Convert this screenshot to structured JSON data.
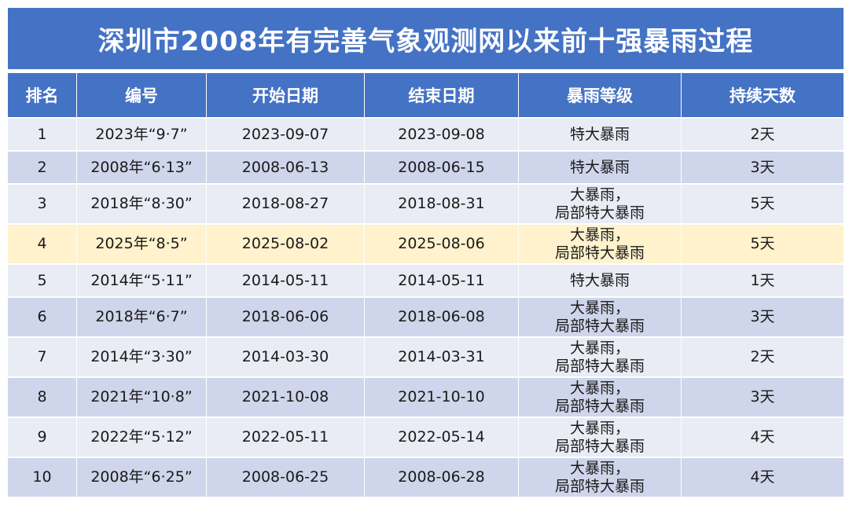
{
  "title": "深圳市2008年有完善气象观测网以来前十强暴雨过程",
  "headers": [
    "排名",
    "编号",
    "开始日期",
    "结束日期",
    "暴雨等级",
    "持续天数"
  ],
  "colors": {
    "header": "#4472c4",
    "row_light": "#e9ecf5",
    "row_dark": "#cfd5ea",
    "highlight": "#fff2cc"
  },
  "rows": [
    {
      "rank": "1",
      "code": "2023年“9·7”",
      "start": "2023-09-07",
      "end": "2023-09-08",
      "grade": [
        "特大暴雨"
      ],
      "days": "2天"
    },
    {
      "rank": "2",
      "code": "2008年“6·13”",
      "start": "2008-06-13",
      "end": "2008-06-15",
      "grade": [
        "特大暴雨"
      ],
      "days": "3天"
    },
    {
      "rank": "3",
      "code": "2018年“8·30”",
      "start": "2018-08-27",
      "end": "2018-08-31",
      "grade": [
        "大暴雨，",
        "局部特大暴雨"
      ],
      "days": "5天"
    },
    {
      "rank": "4",
      "code": "2025年“8·5”",
      "start": "2025-08-02",
      "end": "2025-08-06",
      "grade": [
        "大暴雨，",
        "局部特大暴雨"
      ],
      "days": "5天",
      "highlight": true
    },
    {
      "rank": "5",
      "code": "2014年“5·11”",
      "start": "2014-05-11",
      "end": "2014-05-11",
      "grade": [
        "特大暴雨"
      ],
      "days": "1天"
    },
    {
      "rank": "6",
      "code": "2018年“6·7”",
      "start": "2018-06-06",
      "end": "2018-06-08",
      "grade": [
        "大暴雨，",
        "局部特大暴雨"
      ],
      "days": "3天"
    },
    {
      "rank": "7",
      "code": "2014年“3·30”",
      "start": "2014-03-30",
      "end": "2014-03-31",
      "grade": [
        "大暴雨，",
        "局部特大暴雨"
      ],
      "days": "2天"
    },
    {
      "rank": "8",
      "code": "2021年“10·8”",
      "start": "2021-10-08",
      "end": "2021-10-10",
      "grade": [
        "大暴雨，",
        "局部特大暴雨"
      ],
      "days": "3天"
    },
    {
      "rank": "9",
      "code": "2022年“5·12”",
      "start": "2022-05-11",
      "end": "2022-05-14",
      "grade": [
        "大暴雨，",
        "局部特大暴雨"
      ],
      "days": "4天"
    },
    {
      "rank": "10",
      "code": "2008年“6·25”",
      "start": "2008-06-25",
      "end": "2008-06-28",
      "grade": [
        "大暴雨，",
        "局部特大暴雨"
      ],
      "days": "4天"
    }
  ]
}
